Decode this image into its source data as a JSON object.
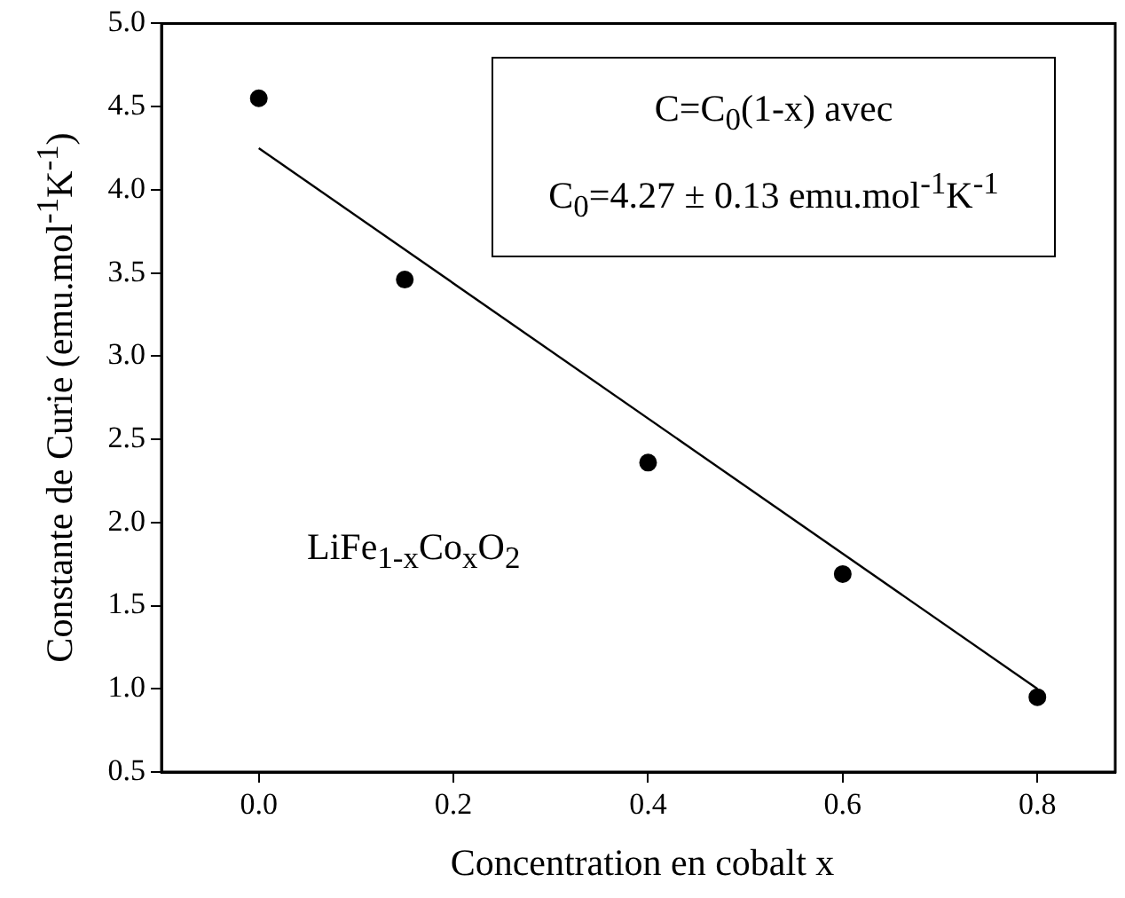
{
  "chart_data": {
    "type": "scatter",
    "xlabel": "Concentration en cobalt x",
    "ylabel": "Constante de Curie (emu.mol$^{-1}$K$^{-1}$)",
    "xlim": [
      -0.1,
      0.88
    ],
    "xticks": [
      {
        "value": 0,
        "label": "0.0"
      },
      0.2,
      0.4,
      0.6,
      0.8
    ],
    "ylim": [
      0.5,
      5
    ],
    "yticks": [
      0.5,
      {
        "value": 1,
        "label": "1.0"
      },
      1.5,
      {
        "value": 2,
        "label": "2.0"
      },
      2.5,
      {
        "value": 3,
        "label": "3.0"
      },
      3.5,
      {
        "value": 4,
        "label": "4.0"
      },
      4.5,
      {
        "value": 5,
        "label": "5.0"
      }
    ],
    "grid": false,
    "legend": false,
    "annotations": [
      "C=C$_{0}$(1-x) avec",
      "C$_{0}$=4.27 ± 0.13 emu.mol$^{-1}$K$^{-1}$",
      "LiFe$_{1-x}$Co$_{x}$O$_{2}$"
    ],
    "series": [
      {
        "color": "#000000",
        "marker": "circle",
        "x": [
          0,
          0.15,
          0.4,
          0.6,
          0.8
        ],
        "values": [
          4.55,
          3.46,
          2.36,
          1.69,
          0.95
        ]
      },
      {
        "type": "line",
        "color": "#000000",
        "marker": "none",
        "line_style": "solid",
        "x": [
          0,
          0.8
        ],
        "values": [
          4.25,
          1.0
        ]
      }
    ]
  }
}
